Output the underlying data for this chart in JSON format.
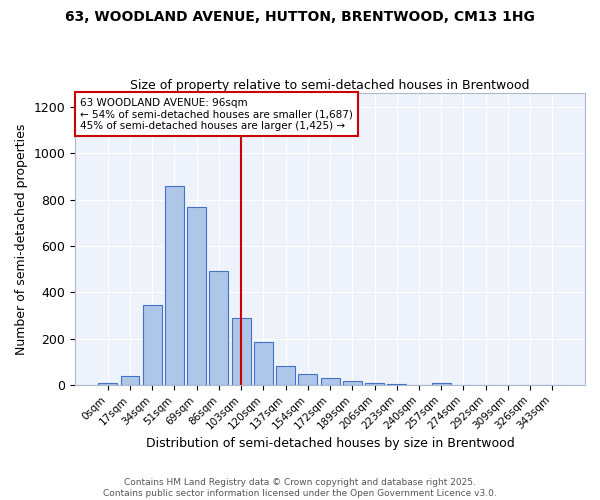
{
  "title_line1": "63, WOODLAND AVENUE, HUTTON, BRENTWOOD, CM13 1HG",
  "title_line2": "Size of property relative to semi-detached houses in Brentwood",
  "xlabel": "Distribution of semi-detached houses by size in Brentwood",
  "ylabel": "Number of semi-detached properties",
  "bar_labels": [
    "0sqm",
    "17sqm",
    "34sqm",
    "51sqm",
    "69sqm",
    "86sqm",
    "103sqm",
    "120sqm",
    "137sqm",
    "154sqm",
    "172sqm",
    "189sqm",
    "206sqm",
    "223sqm",
    "240sqm",
    "257sqm",
    "274sqm",
    "292sqm",
    "309sqm",
    "326sqm",
    "343sqm"
  ],
  "bar_values": [
    8,
    38,
    345,
    860,
    770,
    490,
    290,
    185,
    80,
    45,
    28,
    15,
    8,
    3,
    0,
    10,
    0,
    0,
    0,
    0,
    0
  ],
  "bar_color": "#aec6e8",
  "bar_edge_color": "#4472c4",
  "bg_color": "#eef2fb",
  "grid_color": "#ffffff",
  "vline_x": 6.0,
  "vline_color": "#cc0000",
  "annotation_title": "63 WOODLAND AVENUE: 96sqm",
  "annotation_line2": "← 54% of semi-detached houses are smaller (1,687)",
  "annotation_line3": "45% of semi-detached houses are larger (1,425) →",
  "annotation_box_color": "#cc0000",
  "footer_line1": "Contains HM Land Registry data © Crown copyright and database right 2025.",
  "footer_line2": "Contains public sector information licensed under the Open Government Licence v3.0.",
  "ylim": [
    0,
    1260
  ],
  "yticks": [
    0,
    200,
    400,
    600,
    800,
    1000,
    1200
  ]
}
